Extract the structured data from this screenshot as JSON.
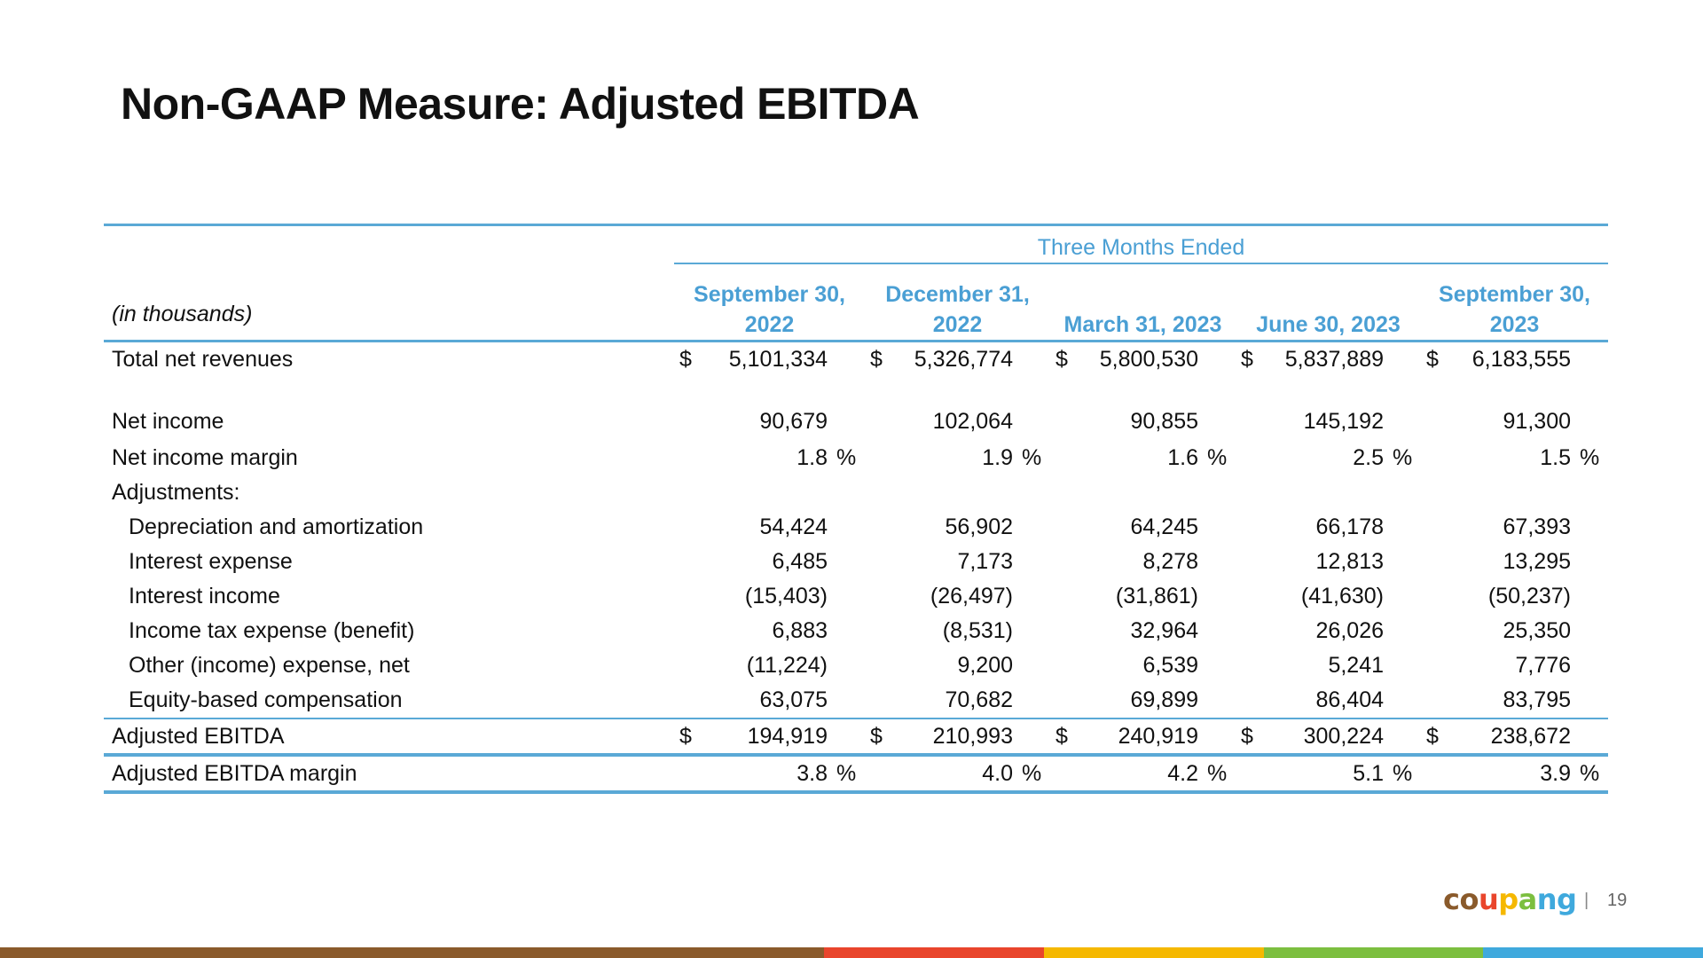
{
  "title": "Non-GAAP Measure: Adjusted EBITDA",
  "table": {
    "units_label": "(in thousands)",
    "group_header": "Three Months Ended",
    "periods": [
      "September 30, 2022",
      "December 31, 2022",
      "March 31, 2023",
      "June 30, 2023",
      "September 30, 2023"
    ],
    "rows": [
      {
        "label": "Total net revenues",
        "values": [
          "5,101,334",
          "5,326,774",
          "5,800,530",
          "5,837,889",
          "6,183,555"
        ],
        "dollar": true
      },
      {
        "label": "Net income",
        "values": [
          "90,679",
          "102,064",
          "90,855",
          "145,192",
          "91,300"
        ],
        "bold": true
      },
      {
        "label": "Net income margin",
        "values": [
          "1.8",
          "1.9",
          "1.6",
          "2.5",
          "1.5"
        ],
        "percent": true
      },
      {
        "label": "Adjustments:",
        "values": []
      },
      {
        "label": "Depreciation and amortization",
        "values": [
          "54,424",
          "56,902",
          "64,245",
          "66,178",
          "67,393"
        ],
        "indent": true
      },
      {
        "label": "Interest expense",
        "values": [
          "6,485",
          "7,173",
          "8,278",
          "12,813",
          "13,295"
        ],
        "indent": true
      },
      {
        "label": "Interest income",
        "values": [
          "(15,403)",
          "(26,497)",
          "(31,861)",
          "(41,630)",
          "(50,237)"
        ],
        "indent": true
      },
      {
        "label": "Income tax expense (benefit)",
        "values": [
          "6,883",
          "(8,531)",
          "32,964",
          "26,026",
          "25,350"
        ],
        "indent": true
      },
      {
        "label": "Other (income) expense, net",
        "values": [
          "(11,224)",
          "9,200",
          "6,539",
          "5,241",
          "7,776"
        ],
        "indent": true
      },
      {
        "label": "Equity-based compensation",
        "values": [
          "63,075",
          "70,682",
          "69,899",
          "86,404",
          "83,795"
        ],
        "indent": true
      },
      {
        "label": "Adjusted EBITDA",
        "values": [
          "194,919",
          "210,993",
          "240,919",
          "300,224",
          "238,672"
        ],
        "bold": true,
        "dollar": true
      },
      {
        "label": "Adjusted EBITDA margin",
        "values": [
          "3.8",
          "4.0",
          "4.2",
          "5.1",
          "3.9"
        ],
        "percent": true
      }
    ],
    "currency_symbol": "$",
    "percent_symbol": "%",
    "line_color": "#5aa9d6",
    "header_color": "#4a9fd4"
  },
  "footer": {
    "logo_parts": [
      {
        "text": "co",
        "color": "#8a5a2b"
      },
      {
        "text": "u",
        "color": "#e9452c"
      },
      {
        "text": "p",
        "color": "#f5b800"
      },
      {
        "text": "a",
        "color": "#7cbf3f"
      },
      {
        "text": "ng",
        "color": "#3fa9dd"
      }
    ],
    "separator": "|",
    "page_number": "19"
  },
  "bottom_bar_colors": [
    {
      "color": "#8a5a2b",
      "weight": 3.75
    },
    {
      "color": "#e9452c",
      "weight": 1
    },
    {
      "color": "#f5b800",
      "weight": 1
    },
    {
      "color": "#7cbf3f",
      "weight": 1
    },
    {
      "color": "#3fa9dd",
      "weight": 1
    }
  ]
}
